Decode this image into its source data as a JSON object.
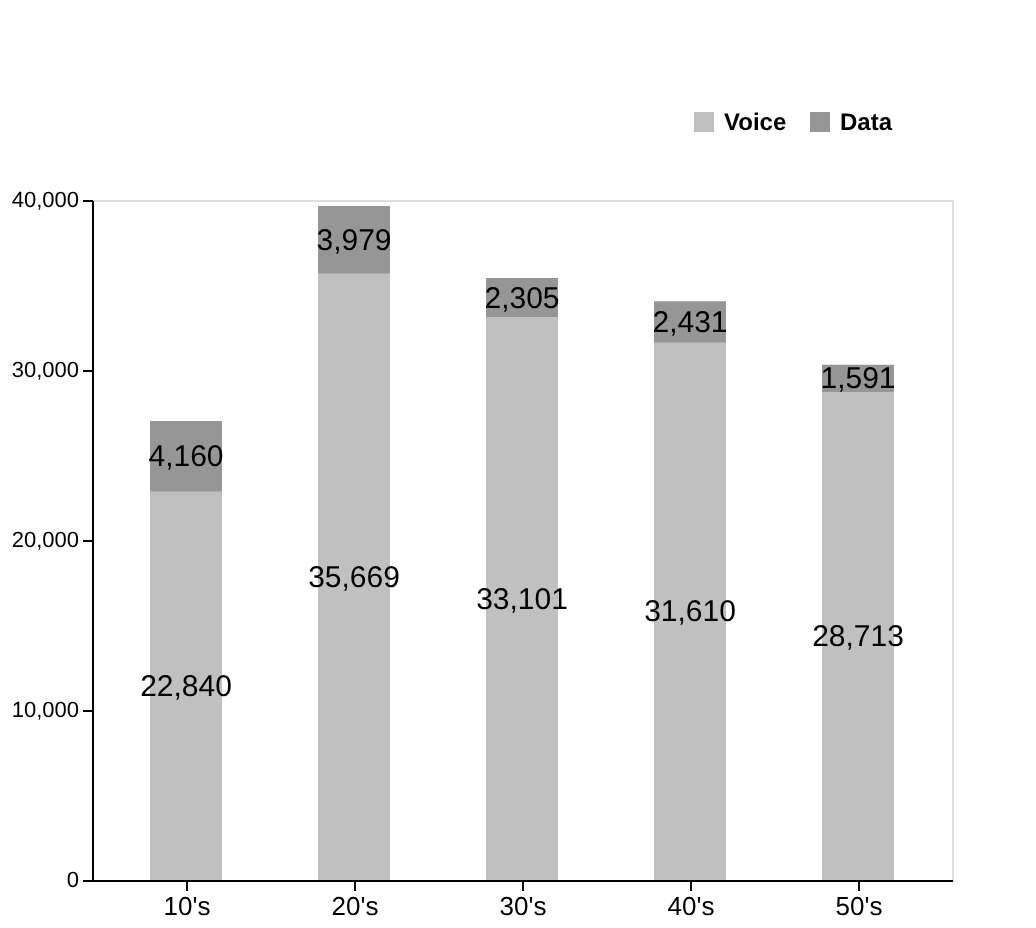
{
  "chart_data": {
    "type": "bar",
    "stacked": true,
    "categories": [
      "10's",
      "20's",
      "30's",
      "40's",
      "50's"
    ],
    "series": [
      {
        "name": "Voice",
        "color": "#c0c0c0",
        "values": [
          22840,
          35669,
          33101,
          31610,
          28713
        ],
        "value_labels": [
          "22,840",
          "35,669",
          "33,101",
          "31,610",
          "28,713"
        ]
      },
      {
        "name": "Data",
        "color": "#969696",
        "values": [
          4160,
          3979,
          2305,
          2431,
          1591
        ],
        "value_labels": [
          "4,160",
          "3,979",
          "2,305",
          "2,431",
          "1,591"
        ]
      }
    ],
    "ylim": [
      0,
      40000
    ],
    "yticks": [
      0,
      {
        "value": 10000,
        "label": "10,000"
      },
      {
        "value": 20000,
        "label": "20,000"
      },
      {
        "value": 30000,
        "label": "30,000"
      },
      {
        "value": 40000,
        "label": "40,000"
      }
    ],
    "grid": false,
    "legend": "top right"
  }
}
